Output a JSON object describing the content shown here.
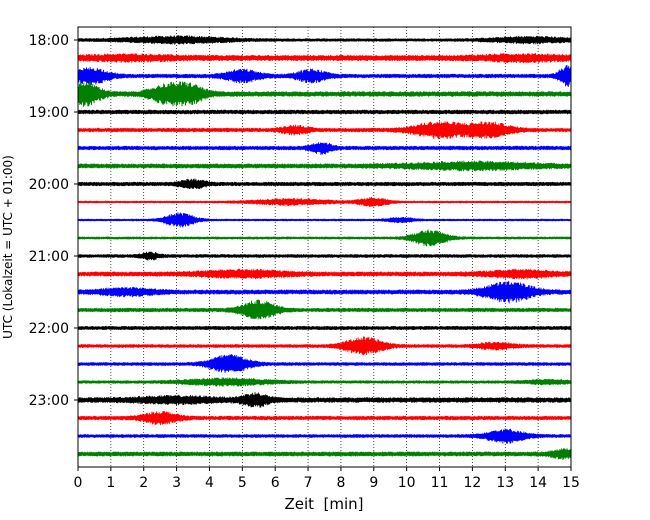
{
  "chart_data": {
    "type": "line",
    "title": "",
    "xlabel": "Zeit  [min]",
    "ylabel": "UTC (Lokalzeit = UTC + 01:00)",
    "xlim": [
      0,
      15
    ],
    "x_ticks": [
      "0",
      "1",
      "2",
      "3",
      "4",
      "5",
      "6",
      "7",
      "8",
      "9",
      "10",
      "11",
      "12",
      "13",
      "14",
      "15"
    ],
    "y_ticks": [
      "18:00",
      "19:00",
      "20:00",
      "21:00",
      "22:00",
      "23:00"
    ],
    "trace_interval_min": 15,
    "start_time": "18:00",
    "grid": "vertical-dotted",
    "colors": [
      "#000000",
      "#ff0000",
      "#0000ff",
      "#008000"
    ],
    "traces": [
      {
        "start": "18:00",
        "color": "#000000",
        "noise": 0.22,
        "events": [
          [
            3,
            0.5,
            1.2
          ],
          [
            13.8,
            0.45,
            0.9
          ]
        ]
      },
      {
        "start": "18:15",
        "color": "#ff0000",
        "noise": 0.45,
        "events": [
          [
            1.5,
            0.3,
            1.0
          ],
          [
            13.5,
            0.35,
            1.0
          ]
        ]
      },
      {
        "start": "18:30",
        "color": "#0000ff",
        "noise": 0.3,
        "events": [
          [
            0.4,
            1.2,
            0.4
          ],
          [
            5,
            0.9,
            0.4
          ],
          [
            7.1,
            0.9,
            0.35
          ],
          [
            14.9,
            1.5,
            0.2
          ]
        ]
      },
      {
        "start": "18:45",
        "color": "#008000",
        "noise": 0.4,
        "events": [
          [
            0.2,
            1.8,
            0.35
          ],
          [
            2.7,
            1.3,
            0.4
          ],
          [
            3.4,
            1.3,
            0.35
          ]
        ]
      },
      {
        "start": "19:00",
        "color": "#000000",
        "noise": 0.32,
        "events": []
      },
      {
        "start": "19:15",
        "color": "#ff0000",
        "noise": 0.3,
        "events": [
          [
            6.6,
            0.6,
            0.3
          ],
          [
            11,
            1.2,
            0.6
          ],
          [
            12.5,
            1.1,
            0.5
          ]
        ]
      },
      {
        "start": "19:30",
        "color": "#0000ff",
        "noise": 0.3,
        "events": [
          [
            7.4,
            0.8,
            0.25
          ]
        ]
      },
      {
        "start": "19:45",
        "color": "#008000",
        "noise": 0.35,
        "events": [
          [
            12,
            0.5,
            1.5
          ]
        ]
      },
      {
        "start": "20:00",
        "color": "#000000",
        "noise": 0.3,
        "events": [
          [
            3.5,
            0.6,
            0.3
          ]
        ]
      },
      {
        "start": "20:15",
        "color": "#ff0000",
        "noise": 0.15,
        "events": [
          [
            6.5,
            0.45,
            0.9
          ],
          [
            9,
            0.65,
            0.35
          ]
        ]
      },
      {
        "start": "20:30",
        "color": "#0000ff",
        "noise": 0.15,
        "events": [
          [
            3.1,
            1.1,
            0.35
          ],
          [
            9.8,
            0.35,
            0.3
          ]
        ]
      },
      {
        "start": "20:45",
        "color": "#008000",
        "noise": 0.18,
        "events": [
          [
            10.7,
            1.2,
            0.4
          ]
        ]
      },
      {
        "start": "21:00",
        "color": "#000000",
        "noise": 0.25,
        "events": [
          [
            2.2,
            0.5,
            0.2
          ]
        ]
      },
      {
        "start": "21:15",
        "color": "#ff0000",
        "noise": 0.35,
        "events": [
          [
            5,
            0.5,
            1.0
          ],
          [
            13.5,
            0.5,
            0.8
          ]
        ]
      },
      {
        "start": "21:30",
        "color": "#0000ff",
        "noise": 0.35,
        "events": [
          [
            1.5,
            0.5,
            0.6
          ],
          [
            13.1,
            1.5,
            0.55
          ]
        ]
      },
      {
        "start": "21:45",
        "color": "#008000",
        "noise": 0.3,
        "events": [
          [
            5.5,
            1.4,
            0.4
          ]
        ]
      },
      {
        "start": "22:00",
        "color": "#000000",
        "noise": 0.28,
        "events": []
      },
      {
        "start": "22:15",
        "color": "#ff0000",
        "noise": 0.25,
        "events": [
          [
            8.7,
            1.3,
            0.45
          ],
          [
            12.7,
            0.5,
            0.4
          ]
        ]
      },
      {
        "start": "22:30",
        "color": "#0000ff",
        "noise": 0.25,
        "events": [
          [
            4.6,
            1.4,
            0.45
          ]
        ]
      },
      {
        "start": "22:45",
        "color": "#008000",
        "noise": 0.22,
        "events": [
          [
            4.5,
            0.5,
            1.0
          ],
          [
            14.3,
            0.3,
            0.5
          ]
        ]
      },
      {
        "start": "23:00",
        "color": "#000000",
        "noise": 0.4,
        "events": [
          [
            5.4,
            0.9,
            0.3
          ],
          [
            3.0,
            0.4,
            1.0
          ]
        ]
      },
      {
        "start": "23:15",
        "color": "#ff0000",
        "noise": 0.3,
        "events": [
          [
            2.5,
            0.9,
            0.4
          ]
        ]
      },
      {
        "start": "23:30",
        "color": "#0000ff",
        "noise": 0.25,
        "events": [
          [
            13,
            1.0,
            0.45
          ]
        ]
      },
      {
        "start": "23:45",
        "color": "#008000",
        "noise": 0.35,
        "events": [
          [
            14.8,
            0.6,
            0.3
          ]
        ]
      }
    ]
  }
}
